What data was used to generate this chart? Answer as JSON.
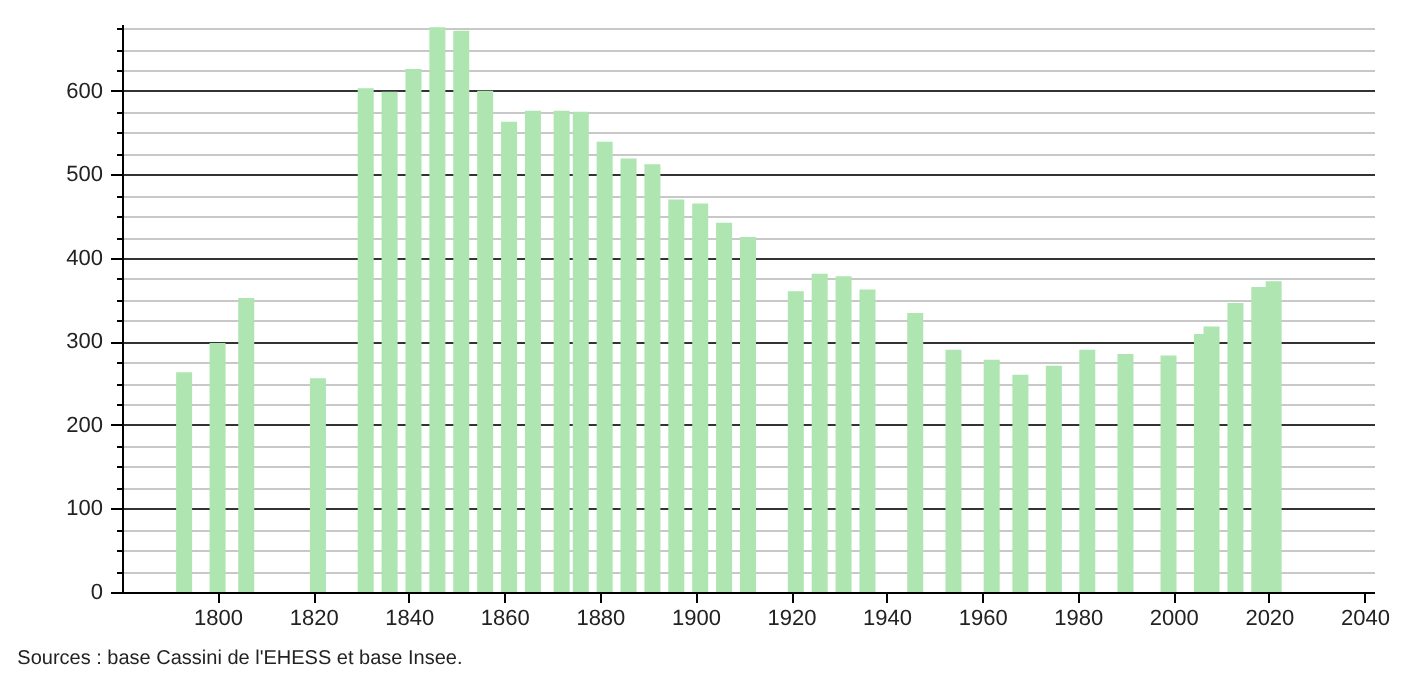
{
  "chart_data": {
    "type": "bar",
    "color": "#aee5b1",
    "x": [
      1793,
      1800,
      1806,
      1821,
      1831,
      1836,
      1841,
      1846,
      1851,
      1856,
      1861,
      1866,
      1872,
      1876,
      1881,
      1886,
      1891,
      1896,
      1901,
      1906,
      1911,
      1921,
      1926,
      1931,
      1936,
      1946,
      1954,
      1962,
      1968,
      1975,
      1982,
      1990,
      1999,
      2006,
      2008,
      2013,
      2018,
      2021
    ],
    "values": [
      263,
      298,
      352,
      256,
      603,
      599,
      626,
      676,
      672,
      600,
      563,
      576,
      576,
      575,
      539,
      519,
      512,
      470,
      465,
      442,
      425,
      360,
      381,
      378,
      362,
      334,
      290,
      278,
      260,
      271,
      290,
      285,
      283,
      309,
      318,
      346,
      365,
      372
    ],
    "xlim": [
      1780,
      2042
    ],
    "xticks": [
      1800,
      1820,
      1840,
      1860,
      1880,
      1900,
      1920,
      1940,
      1960,
      1980,
      2000,
      2020,
      2040
    ],
    "ylim": [
      0,
      680
    ],
    "yticks": [
      0,
      {
        "value": 25,
        "label": null
      },
      {
        "value": 50,
        "label": null
      },
      {
        "value": 75,
        "label": null
      },
      100,
      {
        "value": 125,
        "label": null
      },
      {
        "value": 150,
        "label": null
      },
      {
        "value": 175,
        "label": null
      },
      200,
      {
        "value": 225,
        "label": null
      },
      {
        "value": 250,
        "label": null
      },
      {
        "value": 275,
        "label": null
      },
      300,
      {
        "value": 325,
        "label": null
      },
      {
        "value": 350,
        "label": null
      },
      {
        "value": 375,
        "label": null
      },
      400,
      {
        "value": 425,
        "label": null
      },
      {
        "value": 450,
        "label": null
      },
      {
        "value": 475,
        "label": null
      },
      500,
      {
        "value": 525,
        "label": null
      },
      {
        "value": 550,
        "label": null
      },
      {
        "value": 575,
        "label": null
      },
      600,
      {
        "value": 625,
        "label": null
      },
      {
        "value": 650,
        "label": null
      },
      {
        "value": 675,
        "label": null
      }
    ],
    "grid": "y",
    "annotations": [
      "Sources : base Cassini de l'EHESS et base Insee."
    ]
  }
}
